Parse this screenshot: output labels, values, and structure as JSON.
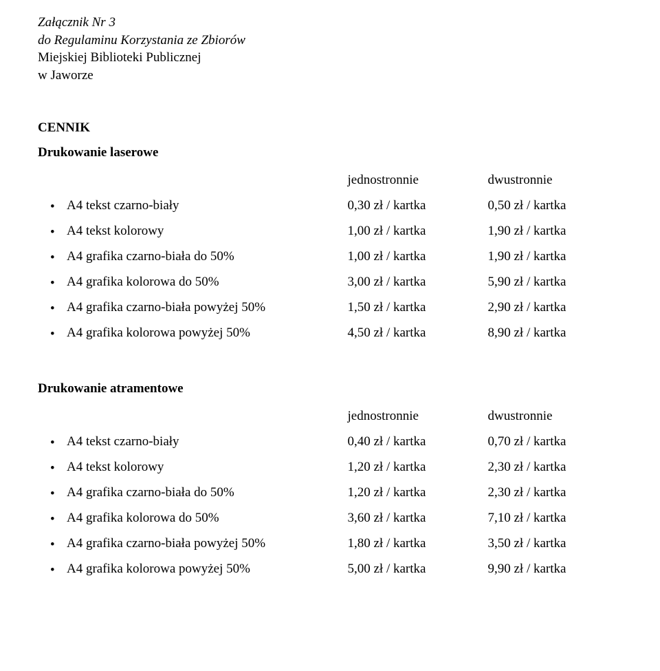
{
  "header": {
    "line1": "Załącznik Nr 3",
    "line2": "do Regulaminu Korzystania ze Zbiorów",
    "line3": "Miejskiej Biblioteki Publicznej",
    "line4": "w Jaworze"
  },
  "title": "CENNIK",
  "section1": {
    "title": "Drukowanie laserowe",
    "columns": {
      "c1": "jednostronnie",
      "c2": "dwustronnie"
    },
    "rows": [
      {
        "label": "A4 tekst czarno-biały",
        "v1": "0,30 zł / kartka",
        "v2": "0,50 zł / kartka"
      },
      {
        "label": "A4 tekst kolorowy",
        "v1": "1,00 zł / kartka",
        "v2": "1,90 zł / kartka"
      },
      {
        "label": "A4 grafika czarno-biała do 50%",
        "v1": "1,00 zł / kartka",
        "v2": "1,90 zł / kartka"
      },
      {
        "label": "A4 grafika kolorowa do 50%",
        "v1": "3,00 zł / kartka",
        "v2": "5,90 zł / kartka"
      },
      {
        "label": "A4 grafika czarno-biała powyżej 50%",
        "v1": "1,50 zł / kartka",
        "v2": "2,90 zł / kartka"
      },
      {
        "label": "A4 grafika kolorowa powyżej 50%",
        "v1": "4,50 zł / kartka",
        "v2": "8,90 zł / kartka"
      }
    ]
  },
  "section2": {
    "title": "Drukowanie atramentowe",
    "columns": {
      "c1": "jednostronnie",
      "c2": "dwustronnie"
    },
    "rows": [
      {
        "label": "A4 tekst czarno-biały",
        "v1": "0,40 zł / kartka",
        "v2": "0,70 zł / kartka"
      },
      {
        "label": "A4 tekst kolorowy",
        "v1": "1,20 zł / kartka",
        "v2": "2,30 zł / kartka"
      },
      {
        "label": "A4 grafika czarno-biała do 50%",
        "v1": "1,20 zł / kartka",
        "v2": "2,30 zł / kartka"
      },
      {
        "label": "A4 grafika kolorowa do 50%",
        "v1": "3,60 zł / kartka",
        "v2": "7,10 zł / kartka"
      },
      {
        "label": "A4 grafika czarno-biała powyżej 50%",
        "v1": "1,80 zł / kartka",
        "v2": "3,50 zł / kartka"
      },
      {
        "label": "A4 grafika kolorowa powyżej 50%",
        "v1": "5,00 zł / kartka",
        "v2": "9,90 zł / kartka"
      }
    ]
  }
}
